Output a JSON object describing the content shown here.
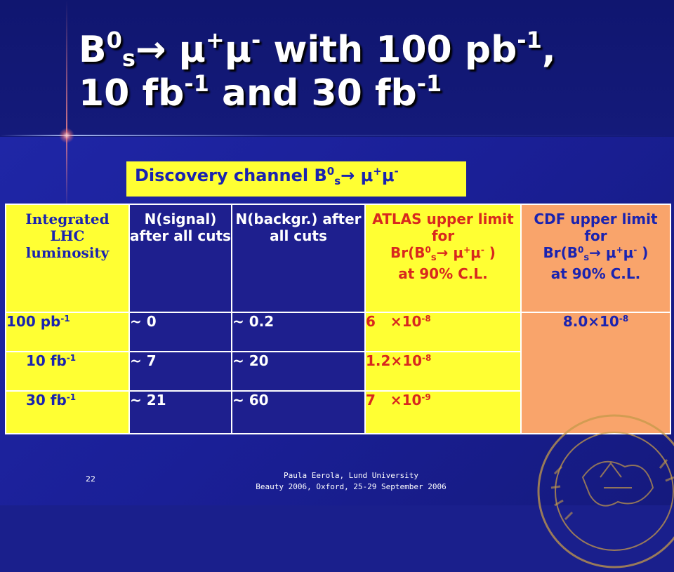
{
  "slide": {
    "title_line1_parts": {
      "b": "B",
      "b_sup": "0",
      "b_sub": "s",
      "arrow": "→ μ",
      "mu_plus_sup": "+",
      "mu": "μ",
      "mu_minus_sup": "-",
      "with": " with 100 pb",
      "pb_sup": "-1",
      "comma": ","
    },
    "title_line2_parts": {
      "a": "10 fb",
      "a_sup": "-1",
      "b": " and 30 fb",
      "b_sup": "-1"
    },
    "discovery_parts": {
      "prefix": "Discovery channel B",
      "sup0": "0",
      "subs": "s",
      "arrow": "→ μ",
      "plus": "+",
      "mu": "μ",
      "minus": "-"
    }
  },
  "table": {
    "headers": {
      "luminosity": "Integrated LHC luminosity",
      "signal": "N(signal) after all cuts",
      "background": "N(backgr.) after all cuts",
      "atlas_main": "ATLAS upper limit for",
      "atlas_br": "Br(B",
      "atlas_br_sup": "0",
      "atlas_br_sub": "s",
      "atlas_br_rest": "→ μ",
      "atlas_plus": "+",
      "atlas_mu": "μ",
      "atlas_minus": "-",
      "atlas_close": " )",
      "atlas_cl": "at 90% C.L.",
      "cdf_main": "CDF upper limit for",
      "cdf_br": "Br(B",
      "cdf_br_sup": "0",
      "cdf_br_sub": "s",
      "cdf_br_rest": "→ μ",
      "cdf_plus": "+",
      "cdf_mu": "μ",
      "cdf_minus": "-",
      "cdf_close": " )",
      "cdf_cl": "at 90% C.L."
    },
    "rows": [
      {
        "lum": "100 pb",
        "lum_sup": "-1",
        "signal": "~ 0",
        "background": "~ 0.2",
        "atlas": "6   ×10",
        "atlas_sup": "-8"
      },
      {
        "lum": "10 fb",
        "lum_sup": "-1",
        "signal": "~ 7",
        "background": "~ 20",
        "atlas": "1.2×10",
        "atlas_sup": "-8"
      },
      {
        "lum": "30 fb",
        "lum_sup": "-1",
        "signal": "~ 21",
        "background": "~ 60",
        "atlas": "7   ×10",
        "atlas_sup": "-9"
      }
    ],
    "cdf_value": "8.0×10",
    "cdf_value_sup": "-8"
  },
  "footer": {
    "page_number": "22",
    "author": "Paula Eerola, Lund University",
    "event": "Beauty 2006, Oxford, 25-29 September 2006"
  },
  "colors": {
    "background": "#1a1f8c",
    "highlight_yellow": "#ffff33",
    "header_blue": "#1e1f8e",
    "atlas_red": "#d8281e",
    "cdf_salmon": "#f9a46b",
    "text_blue": "#1a23b0"
  }
}
